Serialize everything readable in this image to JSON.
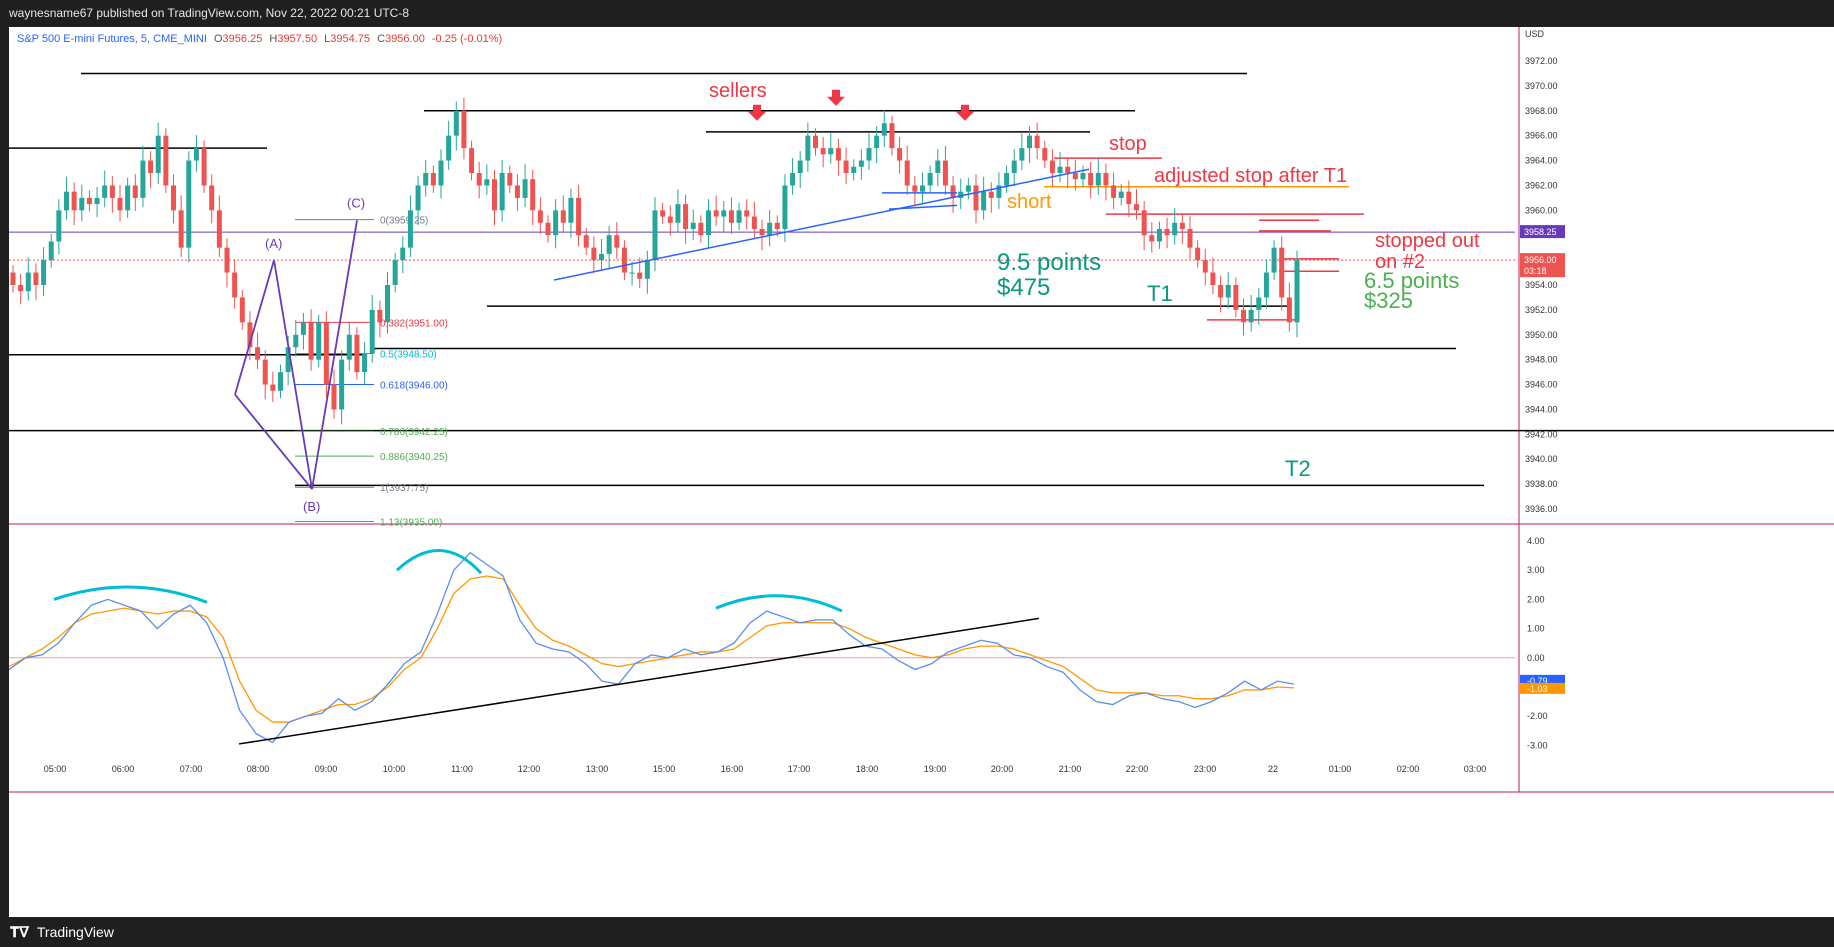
{
  "header": {
    "title": "waynesname67 published on TradingView.com, Nov 22, 2022 00:21 UTC-8"
  },
  "symbol": {
    "name": "S&P 500 E-mini Futures, 5, CME_MINI",
    "o_label": "O",
    "o": "3956.25",
    "h_label": "H",
    "h": "3957.50",
    "l_label": "L",
    "l": "3954.75",
    "c_label": "C",
    "c": "3956.00",
    "change": "-0.25 (-0.01%)"
  },
  "footer": {
    "brand": "TradingView",
    "logo": "tradingview-logo-icon"
  },
  "colors": {
    "up": "#26a69a",
    "down": "#ef5350",
    "blue": "#2962ff",
    "orange": "#ff9800",
    "purple": "#673ab7",
    "red_text": "#f23645",
    "teal_text": "#089981",
    "green_text": "#4caf50",
    "cyan": "#00bcd4"
  },
  "chart_data": [
    {
      "type": "candlestick",
      "currency": "USD",
      "ylim": [
        3935.0,
        3973.0
      ],
      "y_ticks": [
        3972,
        3970,
        3968,
        3966,
        3964,
        3962,
        3960,
        3958,
        3956,
        3954,
        3952,
        3950,
        3948,
        3946,
        3944,
        3942,
        3940,
        3938,
        3936
      ],
      "x_ticks": [
        "05:00",
        "06:00",
        "07:00",
        "08:00",
        "09:00",
        "10:00",
        "11:00",
        "12:00",
        "13:00",
        "15:00",
        "16:00",
        "17:00",
        "18:00",
        "19:00",
        "20:00",
        "21:00",
        "22:00",
        "23:00",
        "22",
        "01:00",
        "02:00",
        "03:00"
      ],
      "price_badges": {
        "line": "3958.25",
        "last": "3956.00",
        "countdown": "03:18"
      },
      "pattern_points": {
        "A": "(A)",
        "B": "(B)",
        "C": "(C)"
      },
      "fib_levels": [
        {
          "label": "0(3959.25)",
          "value": 3959.25,
          "color": "#787b86"
        },
        {
          "label": "0.382(3951.00)",
          "value": 3951.0,
          "color": "#f23645"
        },
        {
          "label": "0.5(3948.50)",
          "value": 3948.5,
          "color": "#00bcd4"
        },
        {
          "label": "0.618(3946.00)",
          "value": 3946.0,
          "color": "#2962ff"
        },
        {
          "label": "0.786(3942.25)",
          "value": 3942.25,
          "color": "#4caf50"
        },
        {
          "label": "0.886(3940.25)",
          "value": 3940.25,
          "color": "#4caf50"
        },
        {
          "label": "1(3937.75)",
          "value": 3937.75,
          "color": "#787b86"
        },
        {
          "label": "1.13(3935.00)",
          "value": 3935.0,
          "color": "#4caf50"
        }
      ],
      "annotations": {
        "sellers": "sellers",
        "stop": "stop",
        "adjusted_stop": "adjusted stop after T1",
        "short": "short",
        "points1": "9.5 points",
        "dollars1": "$475",
        "t1": "T1",
        "stopped_out_1": "stopped out",
        "stopped_out_2": "on #2",
        "points2": "6.5 points",
        "dollars2": "$325",
        "t2": "T2"
      },
      "closes": [
        3954,
        3953.5,
        3955,
        3954,
        3956,
        3957.5,
        3960,
        3961.5,
        3960,
        3961,
        3960.5,
        3961,
        3962,
        3961,
        3960,
        3962,
        3961,
        3964,
        3963,
        3966,
        3962,
        3960,
        3957,
        3964,
        3965,
        3962,
        3960,
        3957,
        3955,
        3953,
        3951,
        3949,
        3948,
        3946,
        3945.5,
        3947,
        3949,
        3950,
        3951,
        3948,
        3951,
        3946,
        3944,
        3948,
        3950,
        3947,
        3948.5,
        3952,
        3951,
        3954,
        3956,
        3957,
        3960,
        3962,
        3963,
        3962,
        3964,
        3966,
        3968,
        3965,
        3963,
        3962,
        3962.5,
        3960,
        3963,
        3962,
        3961,
        3962.5,
        3960,
        3959,
        3958,
        3960,
        3959,
        3961,
        3958,
        3957,
        3956,
        3956.5,
        3958,
        3957,
        3955,
        3955,
        3954.5,
        3956,
        3960,
        3959.5,
        3959,
        3960.5,
        3958.5,
        3959,
        3958,
        3960,
        3959.5,
        3960,
        3959,
        3960,
        3959.5,
        3958.5,
        3958,
        3959,
        3958.5,
        3962,
        3963,
        3964,
        3966,
        3965,
        3964.5,
        3965,
        3964,
        3963,
        3963.5,
        3964,
        3965,
        3966,
        3967,
        3965,
        3964,
        3962,
        3961.5,
        3962,
        3963,
        3964,
        3962,
        3961,
        3961.5,
        3962,
        3960,
        3961.5,
        3961,
        3962,
        3963,
        3964,
        3965,
        3966,
        3965,
        3964,
        3963,
        3963.5,
        3963,
        3962.5,
        3963,
        3962,
        3963,
        3962,
        3961,
        3961.5,
        3960.5,
        3960,
        3958,
        3957.5,
        3958.5,
        3958,
        3959,
        3958.5,
        3957,
        3956,
        3955,
        3954,
        3953,
        3954,
        3952,
        3951,
        3952,
        3953,
        3955,
        3957,
        3953,
        3951,
        3956
      ],
      "oscillator": {
        "y_ticks": [
          "4.00",
          "3.00",
          "2.00",
          "1.00",
          "0.00",
          "-1.00",
          "-2.00",
          "-3.00"
        ],
        "ylim": [
          -3.4,
          4.2
        ],
        "last_blue": "-0.79",
        "last_orange": "-1.03"
      }
    }
  ]
}
